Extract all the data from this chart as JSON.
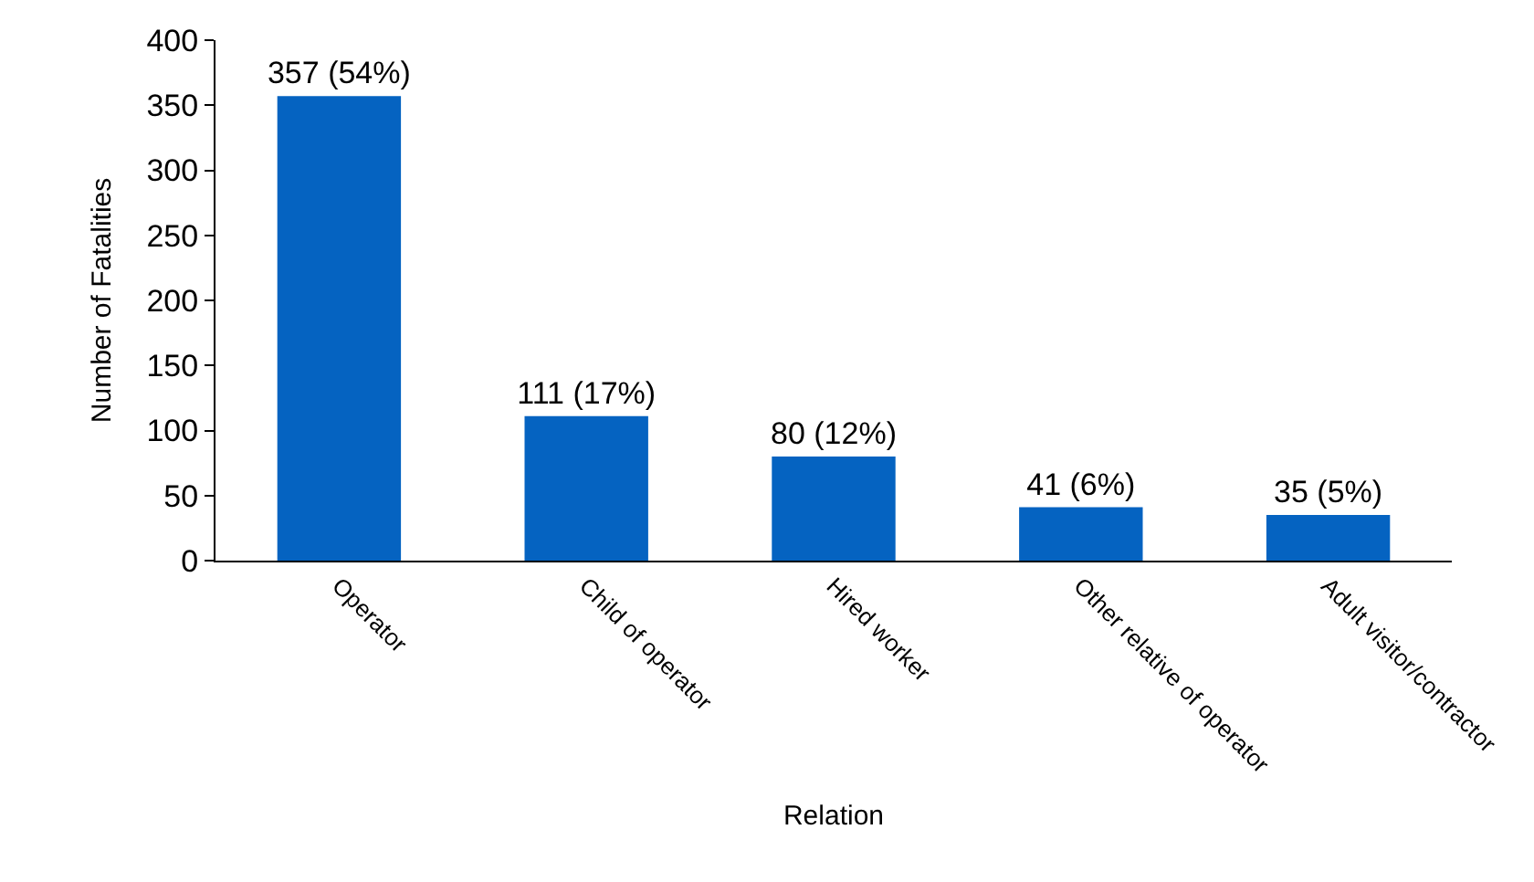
{
  "chart_data": {
    "type": "bar",
    "xlabel": "Relation",
    "ylabel": "Number of Fatalities",
    "categories": [
      "Operator",
      "Child of operator",
      "Hired worker",
      "Other relative of operator",
      "Adult visitor/contractor"
    ],
    "values": [
      357,
      111,
      80,
      41,
      35
    ],
    "value_labels": [
      "357 (54%)",
      "111 (17%)",
      "80 (12%)",
      "41 (6%)",
      "35 (5%)"
    ],
    "color": "#0563c1",
    "ylim": [
      0,
      400
    ],
    "yticks": [
      0,
      50,
      100,
      150,
      200,
      250,
      300,
      350,
      400
    ],
    "legend": false
  }
}
